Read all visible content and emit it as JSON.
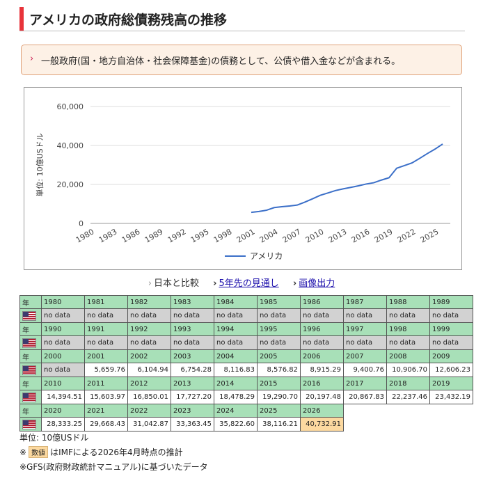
{
  "page": {
    "title": "アメリカの政府総債務残高の推移",
    "note": "一般政府(国・地方自治体・社会保障基金)の債務として、公債や借入金などが含まれる。"
  },
  "links": {
    "compare": "日本と比較",
    "forecast": "5年先の見通し",
    "export": "画像出力"
  },
  "chart_data": {
    "type": "line",
    "title": "",
    "xlabel": "",
    "ylabel": "単位: 10億USドル",
    "ylim": [
      0,
      60000
    ],
    "xlim": [
      1980,
      2027
    ],
    "yticks": [
      "0",
      "20,000",
      "40,000",
      "60,000"
    ],
    "xticks": [
      "1980",
      "1983",
      "1986",
      "1989",
      "1992",
      "1995",
      "1998",
      "2001",
      "2004",
      "2007",
      "2010",
      "2013",
      "2016",
      "2019",
      "2022",
      "2025"
    ],
    "grid": true,
    "legend": "bottom",
    "series": [
      {
        "name": "アメリカ",
        "color": "#3b6fc8",
        "x": [
          2001,
          2002,
          2003,
          2004,
          2005,
          2006,
          2007,
          2008,
          2009,
          2010,
          2011,
          2012,
          2013,
          2014,
          2015,
          2016,
          2017,
          2018,
          2019,
          2020,
          2021,
          2022,
          2023,
          2024,
          2025,
          2026
        ],
        "values": [
          5659.76,
          6104.94,
          6754.28,
          8116.83,
          8576.82,
          8915.29,
          9400.76,
          10906.7,
          12606.23,
          14394.51,
          15603.97,
          16850.01,
          17727.2,
          18478.29,
          19290.7,
          20197.48,
          20867.83,
          22237.46,
          23432.19,
          28333.25,
          29668.43,
          31042.87,
          33363.45,
          35822.6,
          38116.21,
          40732.91
        ]
      }
    ]
  },
  "table": {
    "year_label": "年",
    "flag_name": "us-flag-icon",
    "rows": [
      {
        "years": [
          "1980",
          "1981",
          "1982",
          "1983",
          "1984",
          "1985",
          "1986",
          "1987",
          "1988",
          "1989"
        ],
        "values": [
          "no data",
          "no data",
          "no data",
          "no data",
          "no data",
          "no data",
          "no data",
          "no data",
          "no data",
          "no data"
        ]
      },
      {
        "years": [
          "1990",
          "1991",
          "1992",
          "1993",
          "1994",
          "1995",
          "1996",
          "1997",
          "1998",
          "1999"
        ],
        "values": [
          "no data",
          "no data",
          "no data",
          "no data",
          "no data",
          "no data",
          "no data",
          "no data",
          "no data",
          "no data"
        ]
      },
      {
        "years": [
          "2000",
          "2001",
          "2002",
          "2003",
          "2004",
          "2005",
          "2006",
          "2007",
          "2008",
          "2009"
        ],
        "values": [
          "no data",
          "5,659.76",
          "6,104.94",
          "6,754.28",
          "8,116.83",
          "8,576.82",
          "8,915.29",
          "9,400.76",
          "10,906.70",
          "12,606.23"
        ]
      },
      {
        "years": [
          "2010",
          "2011",
          "2012",
          "2013",
          "2014",
          "2015",
          "2016",
          "2017",
          "2018",
          "2019"
        ],
        "values": [
          "14,394.51",
          "15,603.97",
          "16,850.01",
          "17,727.20",
          "18,478.29",
          "19,290.70",
          "20,197.48",
          "20,867.83",
          "22,237.46",
          "23,432.19"
        ]
      },
      {
        "years": [
          "2020",
          "2021",
          "2022",
          "2023",
          "2024",
          "2025",
          "2026"
        ],
        "values": [
          "28,333.25",
          "29,668.43",
          "31,042.87",
          "33,363.45",
          "35,822.60",
          "38,116.21",
          "40,732.91"
        ]
      }
    ],
    "estimate_years": [
      "2026"
    ]
  },
  "footer": {
    "unit": "単位: 10億USドル",
    "estimate_prefix": "※",
    "estimate_tag": "数値",
    "estimate_text": "はIMFによる2026年4月時点の推計",
    "source": "※GFS(政府財政統計マニュアル)に基づいたデータ"
  }
}
